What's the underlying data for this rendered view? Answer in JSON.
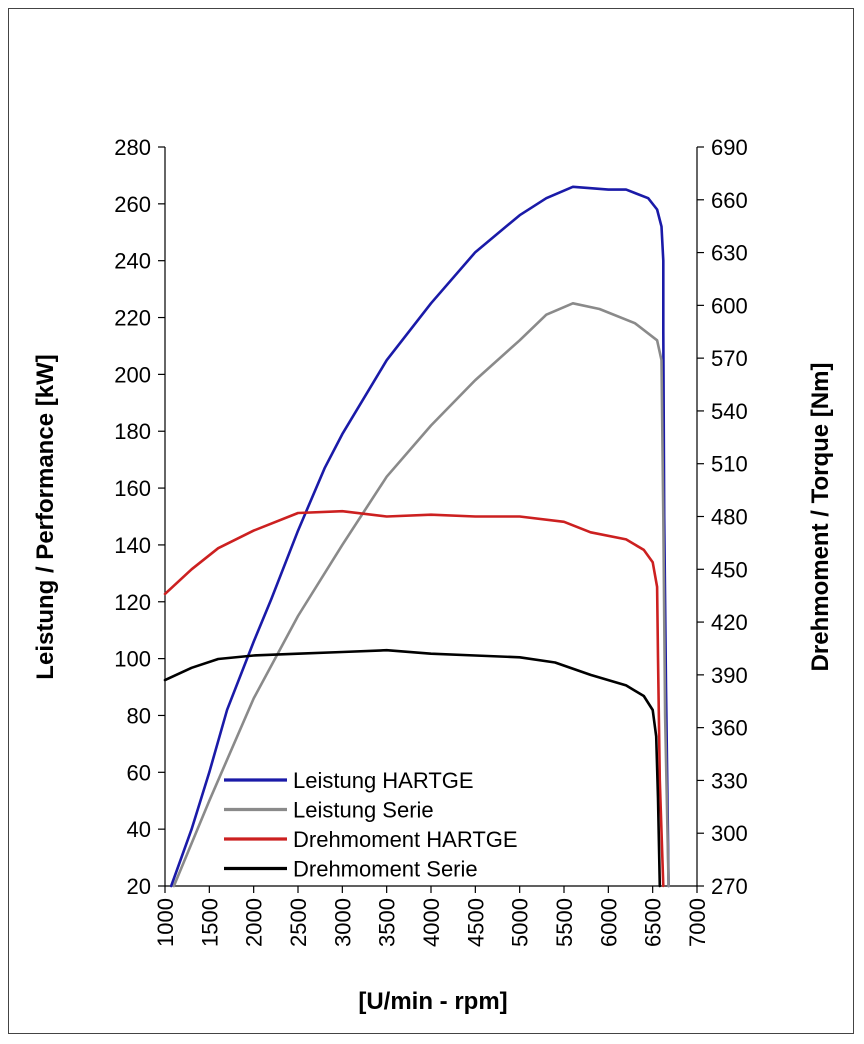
{
  "chart_data": {
    "type": "line",
    "title": "",
    "xlabel": "[U/min - rpm]",
    "ylabel_left": "Leistung / Performance [kW]",
    "ylabel_right": "Drehmoment / Torque [Nm]",
    "xlim": [
      1000,
      7000
    ],
    "ylim_left": [
      20,
      280
    ],
    "ylim_right": [
      270,
      690
    ],
    "x_ticks": [
      1000,
      1500,
      2000,
      2500,
      3000,
      3500,
      4000,
      4500,
      5000,
      5500,
      6000,
      6500,
      7000
    ],
    "y_left_ticks": [
      20,
      40,
      60,
      80,
      100,
      120,
      140,
      160,
      180,
      200,
      220,
      240,
      260,
      280
    ],
    "y_right_ticks": [
      270,
      300,
      330,
      360,
      390,
      420,
      450,
      480,
      510,
      540,
      570,
      600,
      630,
      660,
      690
    ],
    "grid": false,
    "legend_position": "bottom-left",
    "series": [
      {
        "name": "Leistung HARTGE",
        "axis": "left",
        "color": "#1a1aa8",
        "points": [
          [
            1070,
            20
          ],
          [
            1300,
            40
          ],
          [
            1500,
            60
          ],
          [
            1700,
            82
          ],
          [
            2000,
            106
          ],
          [
            2200,
            121
          ],
          [
            2500,
            145
          ],
          [
            2800,
            167
          ],
          [
            3000,
            179
          ],
          [
            3500,
            205
          ],
          [
            4000,
            225
          ],
          [
            4500,
            243
          ],
          [
            5000,
            256
          ],
          [
            5300,
            262
          ],
          [
            5600,
            266
          ],
          [
            6000,
            265
          ],
          [
            6200,
            265
          ],
          [
            6450,
            262
          ],
          [
            6550,
            258
          ],
          [
            6600,
            252
          ],
          [
            6620,
            240
          ],
          [
            6620,
            215
          ],
          [
            6630,
            150
          ],
          [
            6650,
            90
          ],
          [
            6680,
            20
          ]
        ]
      },
      {
        "name": "Leistung Serie",
        "axis": "left",
        "color": "#8a8a8a",
        "points": [
          [
            1100,
            20
          ],
          [
            1300,
            35
          ],
          [
            1500,
            50
          ],
          [
            2000,
            86
          ],
          [
            2500,
            115
          ],
          [
            3000,
            140
          ],
          [
            3500,
            164
          ],
          [
            4000,
            182
          ],
          [
            4500,
            198
          ],
          [
            5000,
            212
          ],
          [
            5300,
            221
          ],
          [
            5600,
            225
          ],
          [
            5900,
            223
          ],
          [
            6300,
            218
          ],
          [
            6550,
            212
          ],
          [
            6600,
            205
          ],
          [
            6620,
            150
          ],
          [
            6640,
            80
          ],
          [
            6680,
            20
          ]
        ]
      },
      {
        "name": "Drehmoment HARTGE",
        "axis": "right",
        "color": "#cc2020",
        "points": [
          [
            1000,
            436
          ],
          [
            1300,
            450
          ],
          [
            1600,
            462
          ],
          [
            2000,
            472
          ],
          [
            2500,
            482
          ],
          [
            3000,
            483
          ],
          [
            3500,
            480
          ],
          [
            4000,
            481
          ],
          [
            4500,
            480
          ],
          [
            5000,
            480
          ],
          [
            5500,
            477
          ],
          [
            5800,
            471
          ],
          [
            6200,
            467
          ],
          [
            6400,
            461
          ],
          [
            6500,
            454
          ],
          [
            6550,
            440
          ],
          [
            6560,
            400
          ],
          [
            6580,
            330
          ],
          [
            6620,
            270
          ]
        ]
      },
      {
        "name": "Drehmoment Serie",
        "axis": "right",
        "color": "#000000",
        "points": [
          [
            1000,
            387
          ],
          [
            1300,
            394
          ],
          [
            1600,
            399
          ],
          [
            2000,
            401
          ],
          [
            2500,
            402
          ],
          [
            3000,
            403
          ],
          [
            3500,
            404
          ],
          [
            4000,
            402
          ],
          [
            4500,
            401
          ],
          [
            5000,
            400
          ],
          [
            5400,
            397
          ],
          [
            5800,
            390
          ],
          [
            6200,
            384
          ],
          [
            6400,
            378
          ],
          [
            6500,
            370
          ],
          [
            6540,
            355
          ],
          [
            6560,
            320
          ],
          [
            6580,
            270
          ]
        ]
      }
    ]
  }
}
